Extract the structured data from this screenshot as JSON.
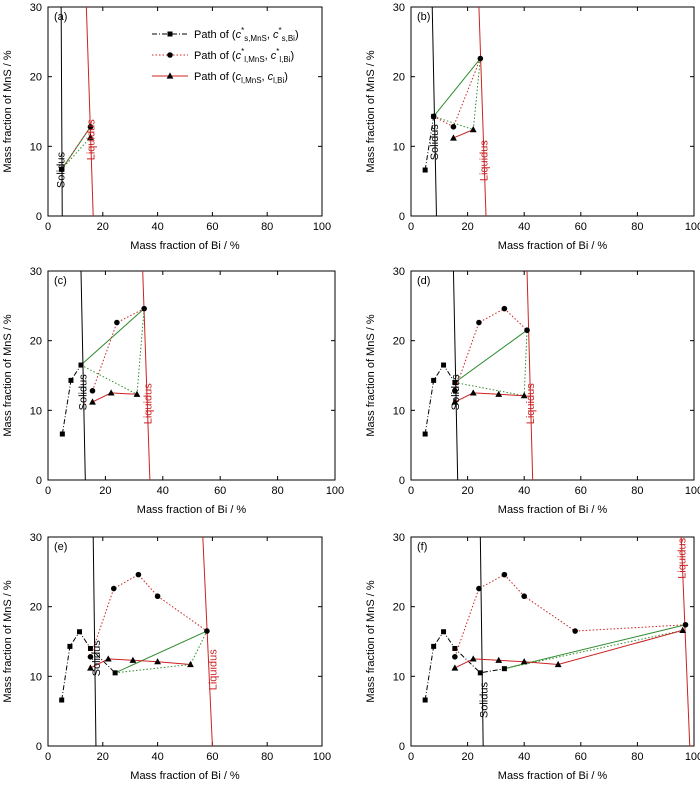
{
  "chart_data": [
    {
      "type": "line",
      "panel": "(a)",
      "xlabel": "Mass fraction of Bi / %",
      "ylabel": "Mass fraction of MnS / %",
      "xlim": [
        0,
        100
      ],
      "ylim": [
        0,
        30
      ],
      "xticks": [
        0,
        20,
        40,
        60,
        80,
        100
      ],
      "yticks": [
        0,
        10,
        20,
        30
      ],
      "legend": {
        "placement": "top-right",
        "entries": [
          {
            "prefix": "Path of (",
            "c": "c",
            "sup": "*",
            "sub1": "s,MnS",
            "sep": ", ",
            "c2": "c",
            "sup2": "*",
            "sub2": "s,Bi",
            "suffix": ")"
          },
          {
            "prefix": "Path of (",
            "c": "c",
            "sup": "*",
            "sub1": "l,MnS",
            "sep": ", ",
            "c2": "c",
            "sup2": "*",
            "sub2": "l,Bi",
            "suffix": ")"
          },
          {
            "prefix": "Path of (",
            "c": "c",
            "sup": "",
            "sub1": "l,MnS",
            "sep": ", ",
            "c2": "c",
            "sup2": "",
            "sub2": "l,Bi",
            "suffix": ")"
          }
        ]
      },
      "solidus": {
        "label": "Solidus",
        "x": [
          4.8,
          5.2
        ],
        "label_at": [
          6,
          4
        ]
      },
      "liquidus": {
        "label": "Liquidus",
        "x": [
          14,
          16.5
        ],
        "label_at": [
          17,
          8
        ]
      },
      "series": [
        {
          "style": "solid-square",
          "x": [
            5
          ],
          "y": [
            6.7
          ]
        },
        {
          "style": "liquid-circle",
          "x": [
            5,
            15.5
          ],
          "y": [
            6.7,
            12.8
          ]
        },
        {
          "style": "path-triangle",
          "x": [
            15.5
          ],
          "y": [
            11.3
          ]
        }
      ],
      "tielines": [
        {
          "style": "green-solid",
          "x": [
            5,
            15.5
          ],
          "y": [
            6.7,
            12.8
          ]
        },
        {
          "style": "green-dotted",
          "x": [
            5,
            15.5
          ],
          "y": [
            6.7,
            11.3
          ]
        }
      ]
    },
    {
      "type": "line",
      "panel": "(b)",
      "xlabel": "Mass fraction of Bi / %",
      "ylabel": "Mass fraction of MnS / %",
      "xlim": [
        0,
        100
      ],
      "ylim": [
        0,
        30
      ],
      "xticks": [
        0,
        20,
        40,
        60,
        80,
        100
      ],
      "yticks": [
        0,
        10,
        20,
        30
      ],
      "solidus": {
        "label": "Solidus",
        "x": [
          7.5,
          9
        ],
        "label_at": [
          9.5,
          8
        ]
      },
      "liquidus": {
        "label": "Liquidus",
        "x": [
          24,
          26.5
        ],
        "label_at": [
          27,
          5
        ]
      },
      "series": [
        {
          "style": "solid-square",
          "x": [
            5,
            8
          ],
          "y": [
            6.6,
            14.3
          ]
        },
        {
          "style": "liquid-circle",
          "x": [
            8,
            15,
            24.5
          ],
          "y": [
            14.3,
            12.8,
            22.6
          ]
        },
        {
          "style": "path-triangle",
          "x": [
            15,
            22
          ],
          "y": [
            11.2,
            12.4
          ]
        }
      ],
      "tielines": [
        {
          "style": "green-solid",
          "x": [
            8,
            24.5
          ],
          "y": [
            14.3,
            22.6
          ]
        },
        {
          "style": "green-dotted",
          "x": [
            8,
            22,
            24.5
          ],
          "y": [
            14.3,
            12.4,
            22.6
          ]
        }
      ]
    },
    {
      "type": "line",
      "panel": "(c)",
      "xlabel": "Mass fraction of Bi / %",
      "ylabel": "Mass fraction of MnS / %",
      "xlim": [
        0,
        100
      ],
      "ylim": [
        0,
        30
      ],
      "xticks": [
        0,
        20,
        40,
        60,
        80,
        100
      ],
      "yticks": [
        0,
        10,
        20,
        30
      ],
      "solidus": {
        "label": "Solidus",
        "x": [
          11.5,
          13
        ],
        "label_at": [
          13.5,
          10
        ]
      },
      "liquidus": {
        "label": "Liquidus",
        "x": [
          33,
          35.5
        ],
        "label_at": [
          36,
          8
        ]
      },
      "series": [
        {
          "style": "solid-square",
          "x": [
            5,
            8,
            11.5
          ],
          "y": [
            6.6,
            14.3,
            16.5
          ]
        },
        {
          "style": "liquid-circle",
          "x": [
            15.5,
            24,
            33.5
          ],
          "y": [
            12.8,
            22.6,
            24.6
          ]
        },
        {
          "style": "path-triangle",
          "x": [
            15.5,
            22,
            31
          ],
          "y": [
            11.2,
            12.5,
            12.3
          ]
        }
      ],
      "tielines": [
        {
          "style": "green-solid",
          "x": [
            11.5,
            33.5
          ],
          "y": [
            16.5,
            24.6
          ]
        },
        {
          "style": "green-dotted",
          "x": [
            11.5,
            31,
            33.5
          ],
          "y": [
            16.5,
            12.3,
            24.6
          ]
        }
      ]
    },
    {
      "type": "line",
      "panel": "(d)",
      "xlabel": "Mass fraction of Bi / %",
      "ylabel": "Mass fraction of MnS / %",
      "xlim": [
        0,
        100
      ],
      "ylim": [
        0,
        30
      ],
      "xticks": [
        0,
        20,
        40,
        60,
        80,
        100
      ],
      "yticks": [
        0,
        10,
        20,
        30
      ],
      "solidus": {
        "label": "Solidus",
        "x": [
          15,
          16.5
        ],
        "label_at": [
          17,
          10
        ]
      },
      "liquidus": {
        "label": "Liquidus",
        "x": [
          41,
          43
        ],
        "label_at": [
          43.5,
          8
        ]
      },
      "series": [
        {
          "style": "solid-square",
          "x": [
            5,
            8,
            11.5,
            15.5
          ],
          "y": [
            6.6,
            14.3,
            16.5,
            14
          ]
        },
        {
          "style": "liquid-circle",
          "x": [
            15.5,
            24,
            33,
            41
          ],
          "y": [
            12.8,
            22.6,
            24.6,
            21.5
          ]
        },
        {
          "style": "path-triangle",
          "x": [
            15.5,
            22,
            31,
            40
          ],
          "y": [
            11.2,
            12.5,
            12.3,
            12.1
          ]
        }
      ],
      "tielines": [
        {
          "style": "green-solid",
          "x": [
            15.5,
            41
          ],
          "y": [
            14,
            21.5
          ]
        },
        {
          "style": "green-dotted",
          "x": [
            15.5,
            40,
            41
          ],
          "y": [
            14,
            12.1,
            21.5
          ]
        }
      ]
    },
    {
      "type": "line",
      "panel": "(e)",
      "xlabel": "Mass fraction of Bi / %",
      "ylabel": "Mass fraction of MnS / %",
      "xlim": [
        0,
        100
      ],
      "ylim": [
        0,
        30
      ],
      "xticks": [
        0,
        20,
        40,
        60,
        80,
        100
      ],
      "yticks": [
        0,
        10,
        20,
        30
      ],
      "solidus": {
        "label": "Solidus",
        "x": [
          16.5,
          17.5
        ],
        "label_at": [
          19,
          10
        ]
      },
      "liquidus": {
        "label": "Liquidus",
        "x": [
          56.5,
          60
        ],
        "label_at": [
          61.5,
          8
        ]
      },
      "series": [
        {
          "style": "solid-square",
          "x": [
            5,
            8,
            11.5,
            15.5,
            24.5
          ],
          "y": [
            6.6,
            14.3,
            16.4,
            14,
            10.5
          ]
        },
        {
          "style": "liquid-circle",
          "x": [
            15.5,
            24,
            33,
            40,
            58
          ],
          "y": [
            12.8,
            22.6,
            24.6,
            21.5,
            16.5
          ]
        },
        {
          "style": "path-triangle",
          "x": [
            15.5,
            22,
            31,
            40,
            52
          ],
          "y": [
            11.2,
            12.5,
            12.3,
            12.1,
            11.7
          ]
        }
      ],
      "tielines": [
        {
          "style": "green-solid",
          "x": [
            24.5,
            58
          ],
          "y": [
            10.5,
            16.5
          ]
        },
        {
          "style": "green-dotted",
          "x": [
            24.5,
            52,
            58
          ],
          "y": [
            10.5,
            11.7,
            16.5
          ]
        }
      ]
    },
    {
      "type": "line",
      "panel": "(f)",
      "xlabel": "Mass fraction of Bi / %",
      "ylabel": "Mass fraction of MnS / %",
      "xlim": [
        0,
        100
      ],
      "ylim": [
        0,
        30
      ],
      "xticks": [
        0,
        20,
        40,
        60,
        80,
        100
      ],
      "yticks": [
        0,
        10,
        20,
        30
      ],
      "solidus": {
        "label": "Solidus",
        "x": [
          24.5,
          25.5
        ],
        "label_at": [
          27,
          4
        ]
      },
      "liquidus": {
        "label": "Liquidus",
        "x": [
          95.5,
          98.5
        ],
        "label_at": [
          97,
          24
        ]
      },
      "series": [
        {
          "style": "solid-square",
          "x": [
            5,
            8,
            11.5,
            15.5,
            24.5,
            33
          ],
          "y": [
            6.6,
            14.3,
            16.4,
            14,
            10.5,
            11.1
          ]
        },
        {
          "style": "liquid-circle",
          "x": [
            15.5,
            24,
            33,
            40,
            58,
            97
          ],
          "y": [
            12.8,
            22.6,
            24.6,
            21.5,
            16.5,
            17.4
          ]
        },
        {
          "style": "path-triangle",
          "x": [
            15.5,
            22,
            31,
            40,
            52,
            96
          ],
          "y": [
            11.2,
            12.5,
            12.3,
            12.1,
            11.7,
            16.6
          ]
        }
      ],
      "tielines": [
        {
          "style": "green-solid",
          "x": [
            33,
            97
          ],
          "y": [
            11.1,
            17.4
          ]
        },
        {
          "style": "green-dotted",
          "x": [
            33,
            96,
            97
          ],
          "y": [
            11.1,
            16.6,
            17.4
          ]
        }
      ]
    }
  ],
  "colors": {
    "solid": "#000000",
    "liquid": "#cc2222",
    "tieline": "#2e8b2e",
    "liquidus": "#cc2222",
    "solidus": "#000000"
  }
}
